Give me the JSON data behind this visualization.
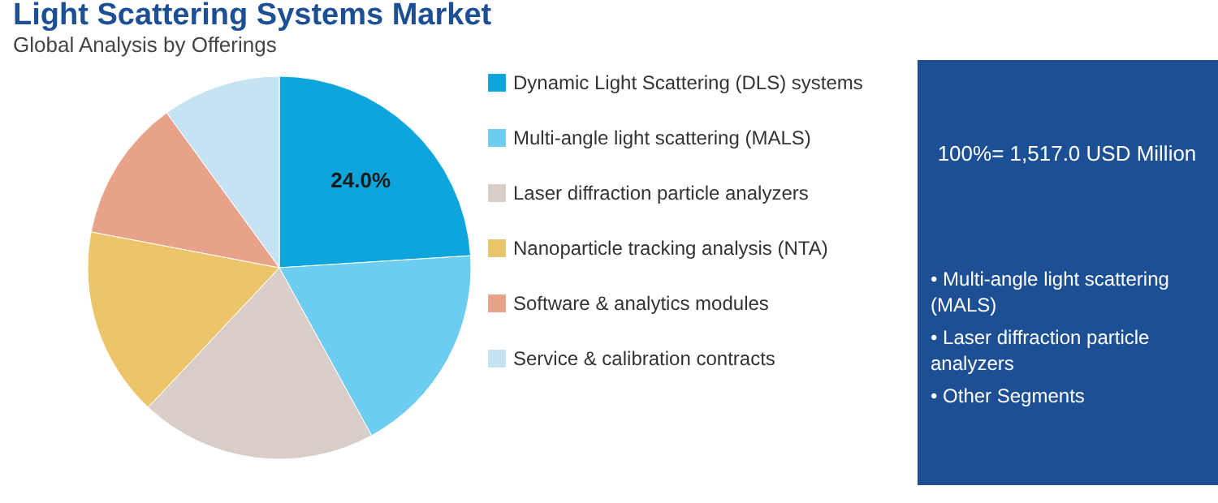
{
  "chart_data": {
    "type": "pie",
    "title": "Light Scattering Systems Market",
    "subtitle": "Global Analysis by Offerings",
    "categories": [
      "Dynamic Light Scattering (DLS) systems",
      "Multi-angle light scattering (MALS)",
      "Laser diffraction particle analyzers",
      "Nanoparticle tracking analysis (NTA)",
      "Software & analytics modules",
      "Service & calibration contracts"
    ],
    "values": [
      24.0,
      18,
      20,
      16,
      12,
      10
    ],
    "colors": [
      "#0ea5dc",
      "#6ccdf0",
      "#d9cdca",
      "#ecc56a",
      "#e9a28a",
      "#c5e3f3"
    ],
    "value_labels": [
      "24.0%",
      null,
      null,
      null,
      null,
      null
    ],
    "legend": "right",
    "annotations": [
      "100%= 1,517.0 USD Million",
      "• Multi-angle light scattering (MALS)",
      "• Laser diffraction particle analyzers",
      "• Other Segments"
    ]
  }
}
